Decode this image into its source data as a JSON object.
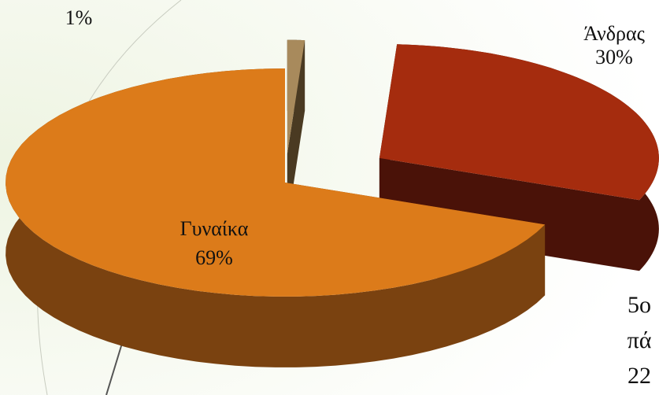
{
  "chart_data": {
    "type": "pie",
    "categories": [
      null,
      "Άνδρας",
      "Γυναίκα"
    ],
    "values": [
      1,
      30,
      69
    ],
    "value_labels": [
      "1%",
      "30%",
      "69%"
    ],
    "colors": [
      "#a88a5c",
      "#a52c0e",
      "#dc7b1a"
    ],
    "side_colors": [
      "#4a3a22",
      "#4a1208",
      "#7a4210"
    ],
    "fragments": [
      "5ο",
      "πά",
      "22"
    ]
  }
}
